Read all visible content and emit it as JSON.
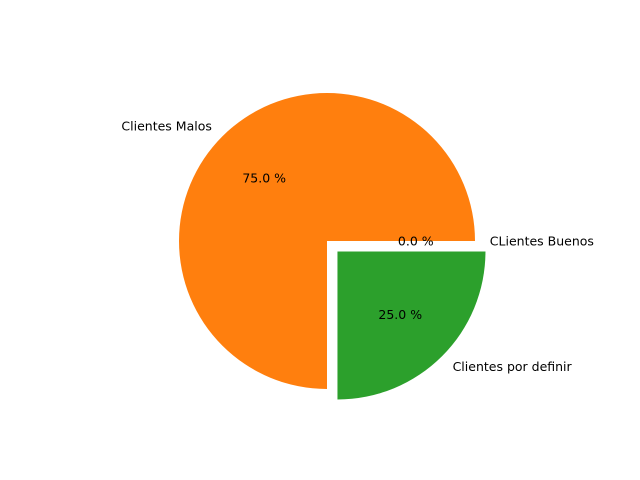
{
  "chart_data": {
    "type": "pie",
    "slices": [
      {
        "label": "CLientes Buenos",
        "value": 0,
        "pct_label": "0.0 %",
        "color": "#1f77b4",
        "exploded": false
      },
      {
        "label": "Clientes Malos",
        "value": 75,
        "pct_label": "75.0 %",
        "color": "#ff7f0e",
        "exploded": false
      },
      {
        "label": "Clientes por definir",
        "value": 25,
        "pct_label": "25.0 %",
        "color": "#2ca02c",
        "exploded": true
      }
    ],
    "start_angle_deg": 0,
    "direction": "counterclockwise"
  }
}
